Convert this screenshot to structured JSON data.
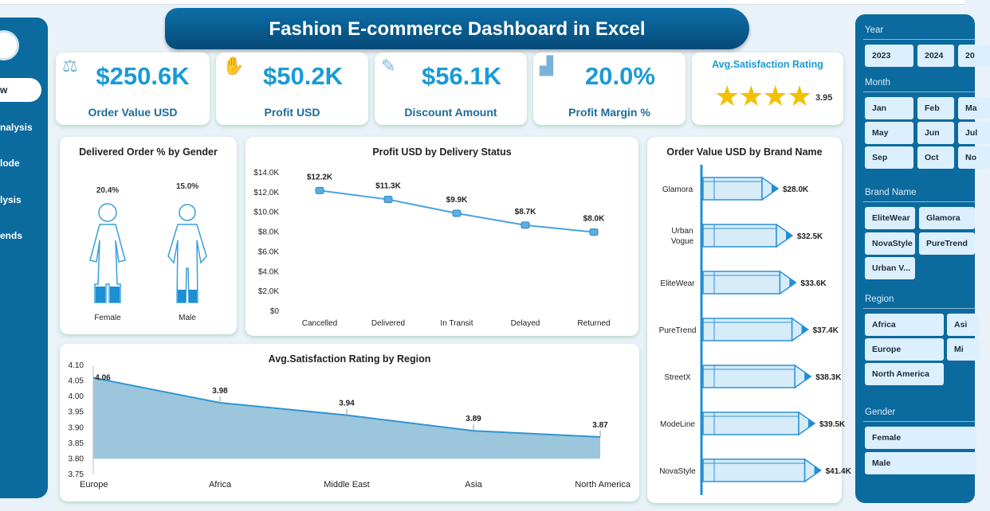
{
  "header": {
    "title": "Fashion E-commerce Dashboard  in Excel"
  },
  "sidebar": {
    "items": [
      {
        "label": "w",
        "active": true
      },
      {
        "label": "nalysis"
      },
      {
        "label": "lode"
      },
      {
        "label": "lysis"
      },
      {
        "label": "ends"
      }
    ]
  },
  "kpis": [
    {
      "value": "$250.6K",
      "label": "Order Value USD",
      "icon": "scale-icon"
    },
    {
      "value": "$50.2K",
      "label": "Profit USD",
      "icon": "money-hand-icon"
    },
    {
      "value": "$56.1K",
      "label": "Discount Amount",
      "icon": "discount-icon"
    },
    {
      "value": "20.0%",
      "label": "Profit Margin %",
      "icon": "bar-chart-icon"
    }
  ],
  "rating": {
    "label": "Avg.Satisfaction Rating",
    "value": "3.95",
    "stars": 3.95
  },
  "slicers": {
    "year": {
      "title": "Year",
      "items": [
        "2023",
        "2024",
        "20"
      ]
    },
    "month": {
      "title": "Month",
      "items": [
        "Jan",
        "Feb",
        "Ma",
        "May",
        "Jun",
        "Jul",
        "Sep",
        "Oct",
        "No"
      ]
    },
    "brand": {
      "title": "Brand Name",
      "items": [
        "EliteWear",
        "Glamora",
        "NovaStyle",
        "PureTrend",
        "Urban V..."
      ]
    },
    "region": {
      "title": "Region",
      "items": [
        "Africa",
        "Asi",
        "Europe",
        "Mi",
        "North America"
      ]
    },
    "gender": {
      "title": "Gender",
      "items": [
        "Female",
        "Male"
      ]
    }
  },
  "chart_data": [
    {
      "type": "pictograph",
      "title": "Delivered Order % by Gender",
      "categories": [
        "Female",
        "Male"
      ],
      "values": [
        20.4,
        15.0
      ],
      "labels": [
        "20.4%",
        "15.0%"
      ]
    },
    {
      "type": "line",
      "title": "Profit USD by Delivery Status",
      "categories": [
        "Cancelled",
        "Delivered",
        "In Transit",
        "Delayed",
        "Returned"
      ],
      "values": [
        12.2,
        11.3,
        9.9,
        8.7,
        8.0
      ],
      "labels": [
        "$12.2K",
        "$11.3K",
        "$9.9K",
        "$8.7K",
        "$8.0K"
      ],
      "ylim": [
        0,
        14
      ],
      "yticks": [
        "$0",
        "$2.0K",
        "$4.0K",
        "$6.0K",
        "$8.0K",
        "$10.0K",
        "$12.0K",
        "$14.0K"
      ]
    },
    {
      "type": "bar",
      "orientation": "horizontal",
      "title": "Order Value USD by Brand Name",
      "categories": [
        "Glamora",
        "Urban Vogue",
        "EliteWear",
        "PureTrend",
        "StreetX",
        "ModeLine",
        "NovaStyle"
      ],
      "values": [
        28.0,
        32.5,
        33.6,
        37.4,
        38.3,
        39.5,
        41.4
      ],
      "labels": [
        "$28.0K",
        "$32.5K",
        "$33.6K",
        "$37.4K",
        "$38.3K",
        "$39.5K",
        "$41.4K"
      ],
      "xlim": [
        5,
        45
      ]
    },
    {
      "type": "area",
      "title": "Avg.Satisfaction Rating by Region",
      "categories": [
        "Europe",
        "Africa",
        "Middle East",
        "Asia",
        "North America"
      ],
      "values": [
        4.06,
        3.98,
        3.94,
        3.89,
        3.87
      ],
      "labels": [
        "4.06",
        "3.98",
        "3.94",
        "3.89",
        "3.87"
      ],
      "ylim": [
        3.75,
        4.1
      ],
      "yticks": [
        "3.75",
        "3.80",
        "3.85",
        "3.90",
        "3.95",
        "4.00",
        "4.05",
        "4.10"
      ]
    }
  ],
  "colors": {
    "primary": "#0b6a9e",
    "accent": "#1a9ad6",
    "line": "#4aa3dc",
    "area": "#9cc6dc"
  }
}
